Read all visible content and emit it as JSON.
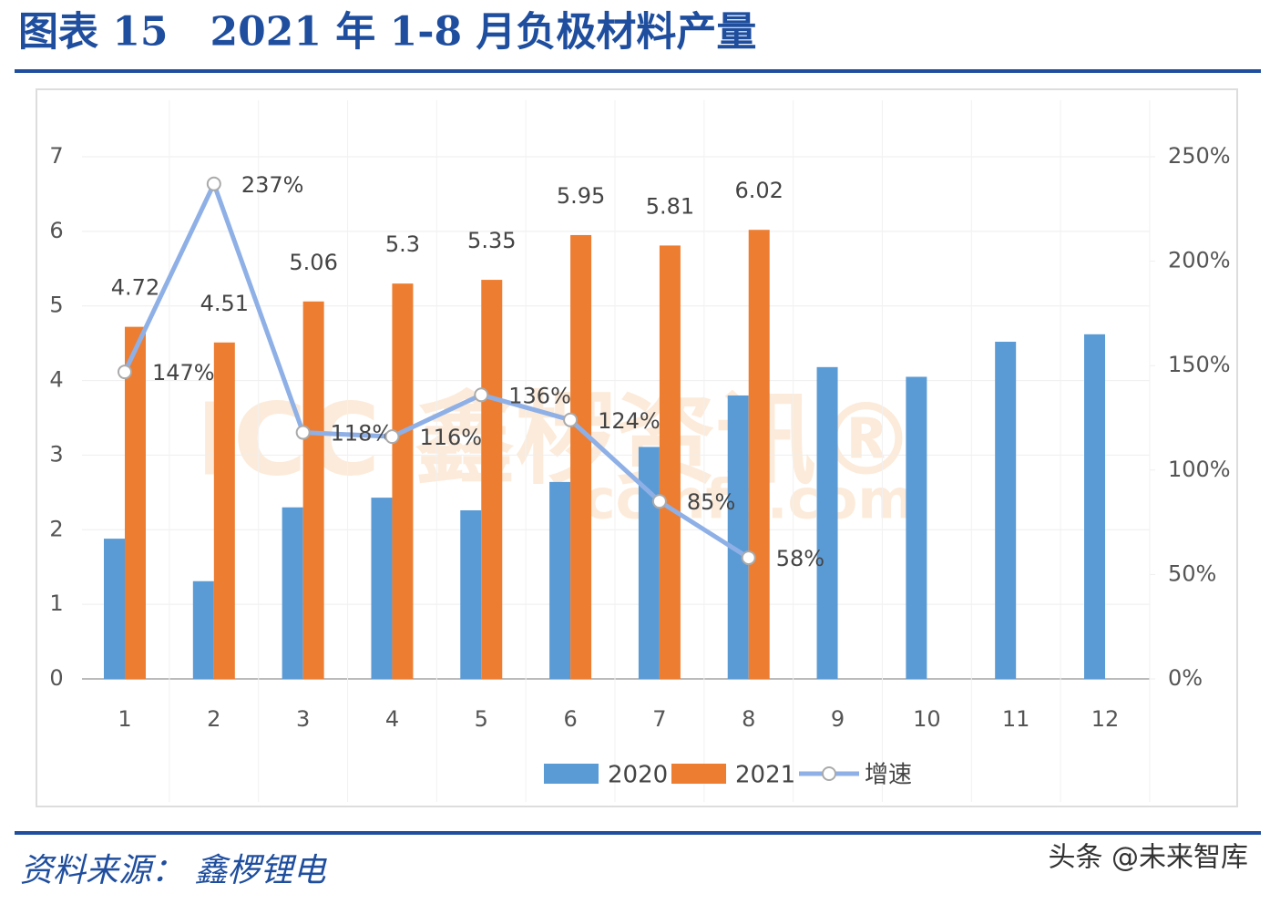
{
  "chart_data": {
    "type": "bar",
    "title": "图表 15   2021 年 1-8 月负极材料产量",
    "source": "资料来源： 鑫椤锂电",
    "credit": "头条 @未来智库",
    "watermark": "ICC 鑫椤资讯®",
    "watermark_url": "ccinfo.com",
    "categories": [
      "1",
      "2",
      "3",
      "4",
      "5",
      "6",
      "7",
      "8",
      "9",
      "10",
      "11",
      "12"
    ],
    "series": [
      {
        "name": "2020",
        "color": "#5b9bd5",
        "values": [
          1.88,
          1.31,
          2.3,
          2.43,
          2.26,
          2.64,
          3.11,
          3.8,
          4.18,
          4.05,
          4.52,
          4.62
        ]
      },
      {
        "name": "2021",
        "color": "#ed7d31",
        "values": [
          4.72,
          4.51,
          5.06,
          5.3,
          5.35,
          5.95,
          5.81,
          6.02,
          null,
          null,
          null,
          null
        ],
        "labels": true
      },
      {
        "name": "增速",
        "type": "line",
        "axis": "y2",
        "color": "#8eb0e6",
        "values": [
          147,
          237,
          118,
          116,
          136,
          124,
          85,
          58,
          null,
          null,
          null,
          null
        ],
        "value_labels": [
          "147%",
          "237%",
          "118%",
          "116%",
          "136%",
          "124%",
          "85%",
          "58%",
          null,
          null,
          null,
          null
        ]
      }
    ],
    "ylim": [
      0,
      7
    ],
    "yticks": [
      0,
      1,
      2,
      3,
      4,
      5,
      6,
      7
    ],
    "y2lim": [
      0,
      250
    ],
    "y2ticks": [
      {
        "value": 0,
        "label": "0%"
      },
      {
        "value": 50,
        "label": "50%"
      },
      {
        "value": 100,
        "label": "100%"
      },
      {
        "value": 150,
        "label": "150%"
      },
      {
        "value": 200,
        "label": "200%"
      },
      {
        "value": 250,
        "label": "250%"
      }
    ],
    "grid": true,
    "legend": "bottom"
  }
}
